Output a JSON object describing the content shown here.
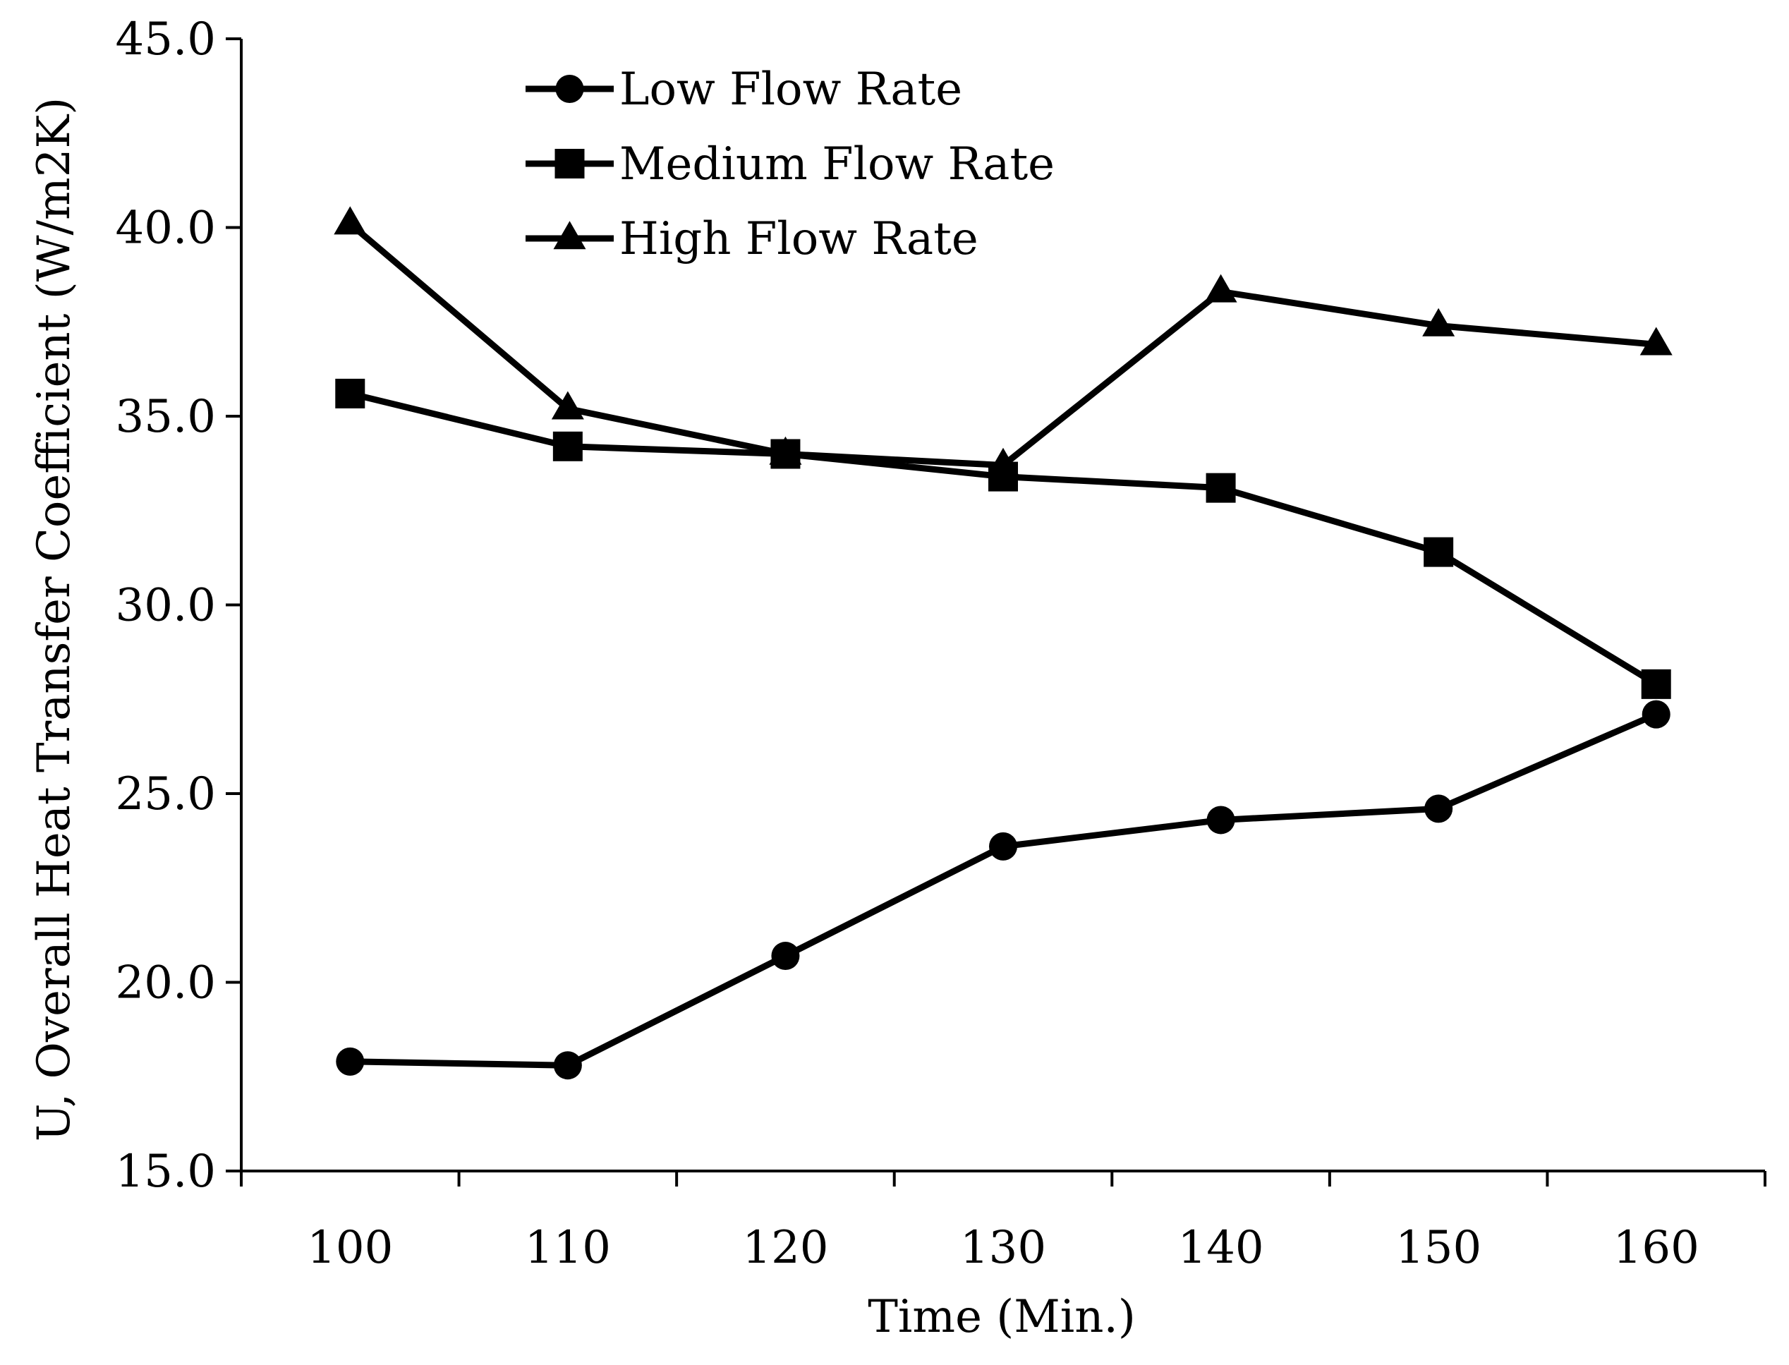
{
  "chart_data": {
    "type": "line",
    "title": "",
    "xlabel": "Time (Min.)",
    "ylabel": "U, Overall Heat Transfer Coefficient (W/m2K)",
    "x": [
      100,
      110,
      120,
      130,
      140,
      150,
      160
    ],
    "x_tick_labels": [
      "100",
      "110",
      "120",
      "130",
      "140",
      "150",
      "160"
    ],
    "ylim": [
      15.0,
      45.0
    ],
    "y_ticks": [
      15.0,
      20.0,
      25.0,
      30.0,
      35.0,
      40.0,
      45.0
    ],
    "y_tick_labels": [
      "15.0",
      "20.0",
      "25.0",
      "30.0",
      "35.0",
      "40.0",
      "45.0"
    ],
    "grid": false,
    "legend_position": "top-center",
    "series": [
      {
        "name": "Low Flow Rate",
        "marker": "circle",
        "values": [
          17.9,
          17.8,
          20.7,
          23.6,
          24.3,
          24.6,
          27.1
        ]
      },
      {
        "name": "Medium Flow Rate",
        "marker": "square",
        "values": [
          35.6,
          34.2,
          34.0,
          33.4,
          33.1,
          31.4,
          27.9
        ]
      },
      {
        "name": "High Flow Rate",
        "marker": "triangle",
        "values": [
          40.1,
          35.2,
          34.0,
          33.7,
          38.3,
          37.4,
          36.9
        ]
      }
    ],
    "line_color": "#000000"
  }
}
